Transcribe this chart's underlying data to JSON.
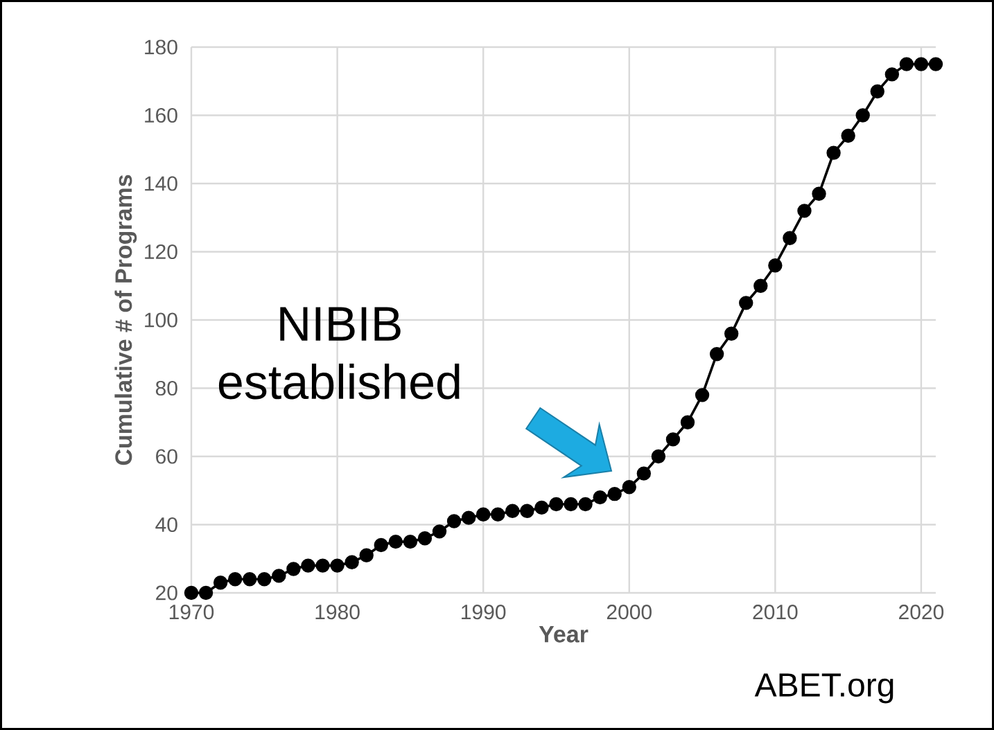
{
  "chart_data": {
    "type": "line",
    "xlabel": "Year",
    "ylabel": "Cumulative # of Programs",
    "x": [
      1970,
      1971,
      1972,
      1973,
      1974,
      1975,
      1976,
      1977,
      1978,
      1979,
      1980,
      1981,
      1982,
      1983,
      1984,
      1985,
      1986,
      1987,
      1988,
      1989,
      1990,
      1991,
      1992,
      1993,
      1994,
      1995,
      1996,
      1997,
      1998,
      1999,
      2000,
      2001,
      2002,
      2003,
      2004,
      2005,
      2006,
      2007,
      2008,
      2009,
      2010,
      2011,
      2012,
      2013,
      2014,
      2015,
      2016,
      2017,
      2018,
      2019,
      2020,
      2021
    ],
    "series": [
      {
        "color": "#000000",
        "values": [
          20,
          20,
          23,
          24,
          24,
          24,
          25,
          27,
          28,
          28,
          28,
          29,
          31,
          34,
          35,
          35,
          36,
          38,
          41,
          42,
          43,
          43,
          44,
          44,
          45,
          46,
          46,
          46,
          48,
          49,
          51,
          55,
          60,
          65,
          70,
          78,
          90,
          96,
          105,
          110,
          116,
          124,
          132,
          137,
          149,
          154,
          160,
          167,
          172,
          175,
          175,
          175
        ]
      }
    ],
    "xlim": [
      1970,
      2021
    ],
    "ylim": [
      20,
      180
    ],
    "xticks": [
      1970,
      1980,
      1990,
      2000,
      2010,
      2020
    ],
    "yticks": [
      20,
      40,
      60,
      80,
      100,
      120,
      140,
      160,
      180
    ],
    "grid": true,
    "marker": "circle",
    "line_style": "solid",
    "annotations": [
      "NIBIB established",
      "ABET.org"
    ]
  }
}
